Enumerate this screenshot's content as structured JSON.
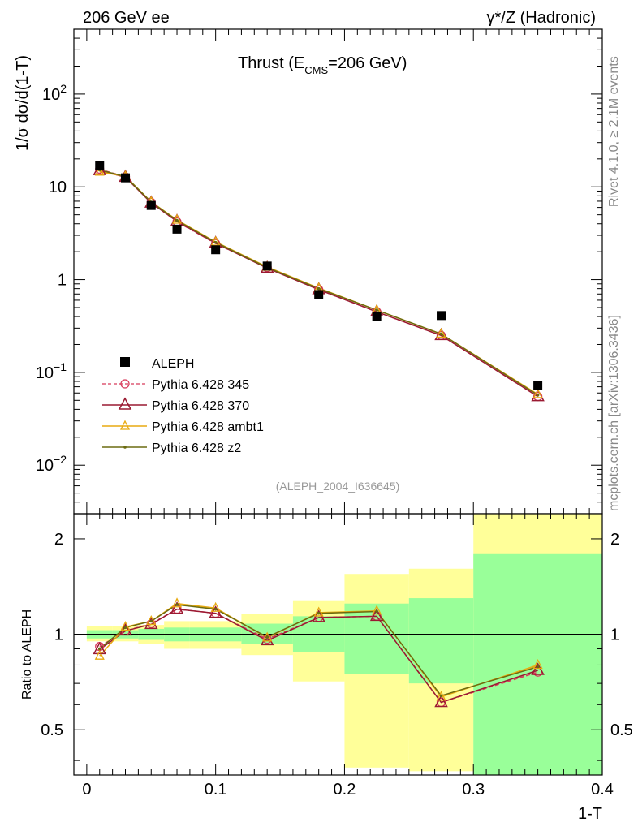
{
  "header": {
    "left": "206 GeV ee",
    "right": "γ*/Z (Hadronic)"
  },
  "side_labels": {
    "rivet": "Rivet 4.1.0, ≥ 2.1M events",
    "mcplots": "mcplots.cern.ch [arXiv:1306.3436]"
  },
  "analysis_tag": "(ALEPH_2004_I636645)",
  "colors": {
    "data": "#000000",
    "p345": "#d83a5a",
    "p370": "#9a1a32",
    "ambt1": "#e8aa10",
    "z2": "#6b6b10",
    "band_inner": "#99ff99",
    "band_outer": "#ffff99"
  },
  "chart_data": [
    {
      "type": "line",
      "title": "Thrust (E_CMS=206 GeV)",
      "title_main": "Thrust (E",
      "title_sub": "CMS",
      "title_tail": "=206 GeV)",
      "xlabel": "1-T",
      "ylabel": "1/σ  dσ/d(1-T)",
      "yscale": "log",
      "xlim": [
        -0.01,
        0.4
      ],
      "ylim": [
        0.003,
        500
      ],
      "ytick_values": [
        0.01,
        0.1,
        1,
        10,
        100
      ],
      "ytick_labels": [
        {
          "base": "10",
          "exp": "−2"
        },
        {
          "base": "10",
          "exp": "−1"
        },
        {
          "base": "1",
          "exp": ""
        },
        {
          "base": "10",
          "exp": ""
        },
        {
          "base": "10",
          "exp": "2"
        }
      ],
      "x": [
        0.01,
        0.03,
        0.05,
        0.07,
        0.1,
        0.14,
        0.18,
        0.225,
        0.275,
        0.35
      ],
      "data_series": {
        "name": "ALEPH",
        "values": [
          17.0,
          12.5,
          6.3,
          3.5,
          2.1,
          1.4,
          0.69,
          0.4,
          0.41,
          0.073
        ]
      },
      "series": [
        {
          "key": "p345",
          "name": "Pythia 6.428 345",
          "marker": "circle",
          "dash": true,
          "values": [
            15.5,
            12.8,
            6.8,
            4.2,
            2.45,
            1.35,
            0.78,
            0.45,
            0.25,
            0.055
          ]
        },
        {
          "key": "p370",
          "name": "Pythia 6.428 370",
          "marker": "triangle",
          "dash": false,
          "values": [
            15.0,
            12.7,
            6.7,
            4.25,
            2.47,
            1.33,
            0.78,
            0.45,
            0.25,
            0.055
          ]
        },
        {
          "key": "ambt1",
          "name": "Pythia 6.428 ambt1",
          "marker": "triangle-small",
          "dash": false,
          "values": [
            14.5,
            13.0,
            6.9,
            4.4,
            2.55,
            1.37,
            0.81,
            0.47,
            0.26,
            0.058
          ]
        },
        {
          "key": "z2",
          "name": "Pythia 6.428 z2",
          "marker": "dot",
          "dash": false,
          "values": [
            15.2,
            12.9,
            6.85,
            4.35,
            2.52,
            1.35,
            0.8,
            0.47,
            0.26,
            0.057
          ]
        }
      ]
    },
    {
      "type": "line",
      "ylabel": "Ratio to ALEPH",
      "xlabel": "1-T",
      "yscale": "log",
      "xlim": [
        -0.01,
        0.4
      ],
      "ylim": [
        0.36,
        2.4
      ],
      "ytick_values": [
        0.5,
        1,
        2
      ],
      "ytick_labels": [
        "0.5",
        "1",
        "2"
      ],
      "xtick_values": [
        0,
        0.1,
        0.2,
        0.3,
        0.4
      ],
      "xtick_labels": [
        "0",
        "0.1",
        "0.2",
        "0.3",
        "0.4"
      ],
      "reference": 1,
      "bins": [
        {
          "lo": 0.0,
          "hi": 0.02,
          "inner": [
            0.97,
            1.03
          ],
          "outer": [
            0.95,
            1.06
          ]
        },
        {
          "lo": 0.02,
          "hi": 0.04,
          "inner": [
            0.97,
            1.03
          ],
          "outer": [
            0.95,
            1.06
          ]
        },
        {
          "lo": 0.04,
          "hi": 0.06,
          "inner": [
            0.96,
            1.04
          ],
          "outer": [
            0.93,
            1.07
          ]
        },
        {
          "lo": 0.06,
          "hi": 0.08,
          "inner": [
            0.95,
            1.05
          ],
          "outer": [
            0.9,
            1.1
          ]
        },
        {
          "lo": 0.08,
          "hi": 0.12,
          "inner": [
            0.95,
            1.05
          ],
          "outer": [
            0.9,
            1.1
          ]
        },
        {
          "lo": 0.12,
          "hi": 0.16,
          "inner": [
            0.93,
            1.08
          ],
          "outer": [
            0.86,
            1.16
          ]
        },
        {
          "lo": 0.16,
          "hi": 0.2,
          "inner": [
            0.88,
            1.14
          ],
          "outer": [
            0.71,
            1.28
          ]
        },
        {
          "lo": 0.2,
          "hi": 0.25,
          "inner": [
            0.75,
            1.25
          ],
          "outer": [
            0.38,
            1.55
          ]
        },
        {
          "lo": 0.25,
          "hi": 0.3,
          "inner": [
            0.7,
            1.3
          ],
          "outer": [
            0.37,
            1.61
          ]
        },
        {
          "lo": 0.3,
          "hi": 0.4,
          "inner": [
            0.36,
            1.79
          ],
          "outer": [
            0.36,
            2.4
          ]
        }
      ],
      "x": [
        0.01,
        0.03,
        0.05,
        0.07,
        0.1,
        0.14,
        0.18,
        0.225,
        0.275,
        0.35
      ],
      "series": [
        {
          "key": "p345",
          "name": "Pythia 6.428 345",
          "marker": "circle",
          "dash": true,
          "values": [
            0.915,
            1.025,
            1.08,
            1.2,
            1.165,
            0.965,
            1.13,
            1.14,
            0.61,
            0.76
          ]
        },
        {
          "key": "p370",
          "name": "Pythia 6.428 370",
          "marker": "triangle",
          "dash": false,
          "values": [
            0.895,
            1.025,
            1.075,
            1.2,
            1.165,
            0.955,
            1.13,
            1.14,
            0.61,
            0.77
          ]
        },
        {
          "key": "ambt1",
          "name": "Pythia 6.428 ambt1",
          "marker": "triangle-small",
          "dash": false,
          "values": [
            0.855,
            1.055,
            1.1,
            1.25,
            1.21,
            0.975,
            1.17,
            1.185,
            0.635,
            0.8
          ]
        },
        {
          "key": "z2",
          "name": "Pythia 6.428 z2",
          "marker": "dot",
          "dash": false,
          "values": [
            0.9,
            1.05,
            1.1,
            1.24,
            1.2,
            0.98,
            1.165,
            1.18,
            0.64,
            0.79
          ]
        }
      ]
    }
  ]
}
